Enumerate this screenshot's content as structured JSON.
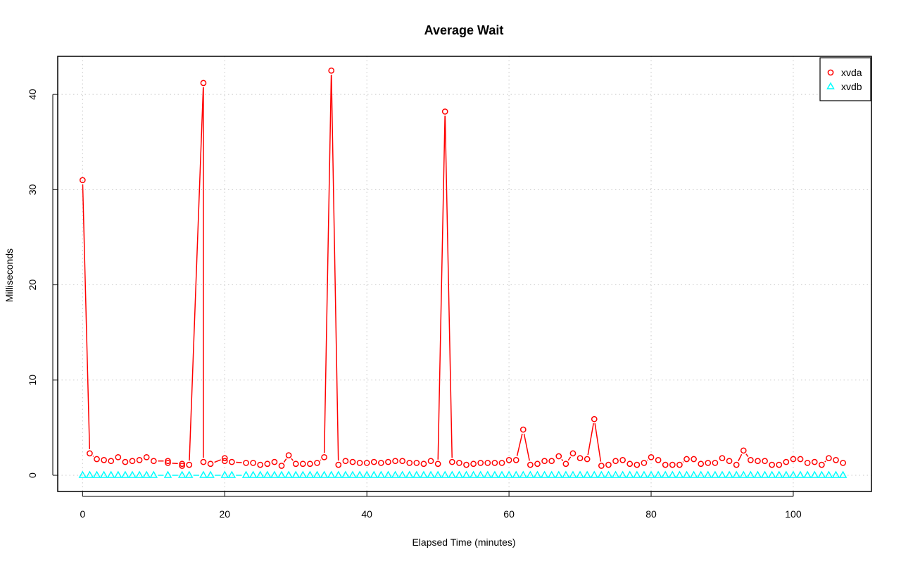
{
  "chart_data": {
    "type": "line",
    "title": "Average Wait",
    "xlabel": "Elapsed Time (minutes)",
    "ylabel": "Milliseconds",
    "xlim": [
      -3.5,
      111
    ],
    "ylim": [
      -1.7,
      44
    ],
    "x_ticks": [
      "0",
      "20",
      "40",
      "60",
      "80",
      "100"
    ],
    "y_ticks": [
      "0",
      "10",
      "20",
      "30",
      "40"
    ],
    "grid": true,
    "legend": "top-right",
    "series": [
      {
        "name": "xvda",
        "color": "#ff0000",
        "marker": "circle",
        "points": [
          [
            0,
            31.0
          ],
          [
            1,
            2.3
          ],
          [
            2,
            1.7
          ],
          [
            3,
            1.6
          ],
          [
            4,
            1.5
          ],
          [
            5,
            1.9
          ],
          [
            6,
            1.4
          ],
          [
            7,
            1.5
          ],
          [
            8,
            1.6
          ],
          [
            9,
            1.9
          ],
          [
            10,
            1.5
          ],
          [
            12,
            1.5
          ],
          [
            12,
            1.3
          ],
          [
            14,
            1.2
          ],
          [
            14,
            1.0
          ],
          [
            15,
            1.1
          ],
          [
            17,
            41.2
          ],
          [
            17,
            1.4
          ],
          [
            18,
            1.2
          ],
          [
            20,
            1.8
          ],
          [
            20,
            1.5
          ],
          [
            21,
            1.4
          ],
          [
            23,
            1.3
          ],
          [
            24,
            1.3
          ],
          [
            25,
            1.1
          ],
          [
            26,
            1.2
          ],
          [
            27,
            1.4
          ],
          [
            28,
            1.0
          ],
          [
            29,
            2.1
          ],
          [
            30,
            1.2
          ],
          [
            31,
            1.2
          ],
          [
            32,
            1.2
          ],
          [
            33,
            1.3
          ],
          [
            34,
            1.9
          ],
          [
            35,
            42.5
          ],
          [
            36,
            1.1
          ],
          [
            37,
            1.5
          ],
          [
            38,
            1.4
          ],
          [
            39,
            1.3
          ],
          [
            40,
            1.3
          ],
          [
            41,
            1.4
          ],
          [
            42,
            1.3
          ],
          [
            43,
            1.4
          ],
          [
            44,
            1.5
          ],
          [
            45,
            1.5
          ],
          [
            46,
            1.3
          ],
          [
            47,
            1.3
          ],
          [
            48,
            1.2
          ],
          [
            49,
            1.5
          ],
          [
            50,
            1.2
          ],
          [
            51,
            38.2
          ],
          [
            52,
            1.4
          ],
          [
            53,
            1.3
          ],
          [
            54,
            1.1
          ],
          [
            55,
            1.2
          ],
          [
            56,
            1.3
          ],
          [
            57,
            1.3
          ],
          [
            58,
            1.3
          ],
          [
            59,
            1.3
          ],
          [
            60,
            1.6
          ],
          [
            61,
            1.6
          ],
          [
            62,
            4.8
          ],
          [
            63,
            1.1
          ],
          [
            64,
            1.2
          ],
          [
            65,
            1.5
          ],
          [
            66,
            1.5
          ],
          [
            67,
            2.0
          ],
          [
            68,
            1.2
          ],
          [
            69,
            2.3
          ],
          [
            70,
            1.8
          ],
          [
            71,
            1.7
          ],
          [
            72,
            5.9
          ],
          [
            73,
            1.0
          ],
          [
            74,
            1.1
          ],
          [
            75,
            1.5
          ],
          [
            76,
            1.6
          ],
          [
            77,
            1.2
          ],
          [
            78,
            1.1
          ],
          [
            79,
            1.3
          ],
          [
            80,
            1.9
          ],
          [
            81,
            1.6
          ],
          [
            82,
            1.1
          ],
          [
            83,
            1.1
          ],
          [
            84,
            1.1
          ],
          [
            85,
            1.7
          ],
          [
            86,
            1.7
          ],
          [
            87,
            1.2
          ],
          [
            88,
            1.3
          ],
          [
            89,
            1.3
          ],
          [
            90,
            1.8
          ],
          [
            91,
            1.5
          ],
          [
            92,
            1.1
          ],
          [
            93,
            2.6
          ],
          [
            94,
            1.6
          ],
          [
            95,
            1.5
          ],
          [
            96,
            1.5
          ],
          [
            97,
            1.1
          ],
          [
            98,
            1.1
          ],
          [
            99,
            1.4
          ],
          [
            100,
            1.7
          ],
          [
            101,
            1.7
          ],
          [
            102,
            1.3
          ],
          [
            103,
            1.4
          ],
          [
            104,
            1.1
          ],
          [
            105,
            1.8
          ],
          [
            106,
            1.6
          ],
          [
            107,
            1.3
          ]
        ]
      },
      {
        "name": "xvdb",
        "color": "#00ffff",
        "marker": "triangle",
        "points": [
          [
            0,
            0
          ],
          [
            1,
            0
          ],
          [
            2,
            0
          ],
          [
            3,
            0
          ],
          [
            4,
            0
          ],
          [
            5,
            0
          ],
          [
            6,
            0
          ],
          [
            7,
            0
          ],
          [
            8,
            0
          ],
          [
            9,
            0
          ],
          [
            10,
            0
          ],
          [
            12,
            0
          ],
          [
            14,
            0
          ],
          [
            15,
            0
          ],
          [
            17,
            0
          ],
          [
            18,
            0
          ],
          [
            20,
            0
          ],
          [
            21,
            0
          ],
          [
            23,
            0
          ],
          [
            24,
            0
          ],
          [
            25,
            0
          ],
          [
            26,
            0
          ],
          [
            27,
            0
          ],
          [
            28,
            0
          ],
          [
            29,
            0
          ],
          [
            30,
            0
          ],
          [
            31,
            0
          ],
          [
            32,
            0
          ],
          [
            33,
            0
          ],
          [
            34,
            0
          ],
          [
            35,
            0
          ],
          [
            36,
            0
          ],
          [
            37,
            0
          ],
          [
            38,
            0
          ],
          [
            39,
            0
          ],
          [
            40,
            0
          ],
          [
            41,
            0
          ],
          [
            42,
            0
          ],
          [
            43,
            0
          ],
          [
            44,
            0
          ],
          [
            45,
            0
          ],
          [
            46,
            0
          ],
          [
            47,
            0
          ],
          [
            48,
            0
          ],
          [
            49,
            0
          ],
          [
            50,
            0
          ],
          [
            51,
            0
          ],
          [
            52,
            0
          ],
          [
            53,
            0
          ],
          [
            54,
            0
          ],
          [
            55,
            0
          ],
          [
            56,
            0
          ],
          [
            57,
            0
          ],
          [
            58,
            0
          ],
          [
            59,
            0
          ],
          [
            60,
            0
          ],
          [
            61,
            0
          ],
          [
            62,
            0
          ],
          [
            63,
            0
          ],
          [
            64,
            0
          ],
          [
            65,
            0
          ],
          [
            66,
            0
          ],
          [
            67,
            0
          ],
          [
            68,
            0
          ],
          [
            69,
            0
          ],
          [
            70,
            0
          ],
          [
            71,
            0
          ],
          [
            72,
            0
          ],
          [
            73,
            0
          ],
          [
            74,
            0
          ],
          [
            75,
            0
          ],
          [
            76,
            0
          ],
          [
            77,
            0
          ],
          [
            78,
            0
          ],
          [
            79,
            0
          ],
          [
            80,
            0
          ],
          [
            81,
            0
          ],
          [
            82,
            0
          ],
          [
            83,
            0
          ],
          [
            84,
            0
          ],
          [
            85,
            0
          ],
          [
            86,
            0
          ],
          [
            87,
            0
          ],
          [
            88,
            0
          ],
          [
            89,
            0
          ],
          [
            90,
            0
          ],
          [
            91,
            0
          ],
          [
            92,
            0
          ],
          [
            93,
            0
          ],
          [
            94,
            0
          ],
          [
            95,
            0
          ],
          [
            96,
            0
          ],
          [
            97,
            0
          ],
          [
            98,
            0
          ],
          [
            99,
            0
          ],
          [
            100,
            0
          ],
          [
            101,
            0
          ],
          [
            102,
            0
          ],
          [
            103,
            0
          ],
          [
            104,
            0
          ],
          [
            105,
            0
          ],
          [
            106,
            0
          ],
          [
            107,
            0
          ]
        ]
      }
    ]
  }
}
